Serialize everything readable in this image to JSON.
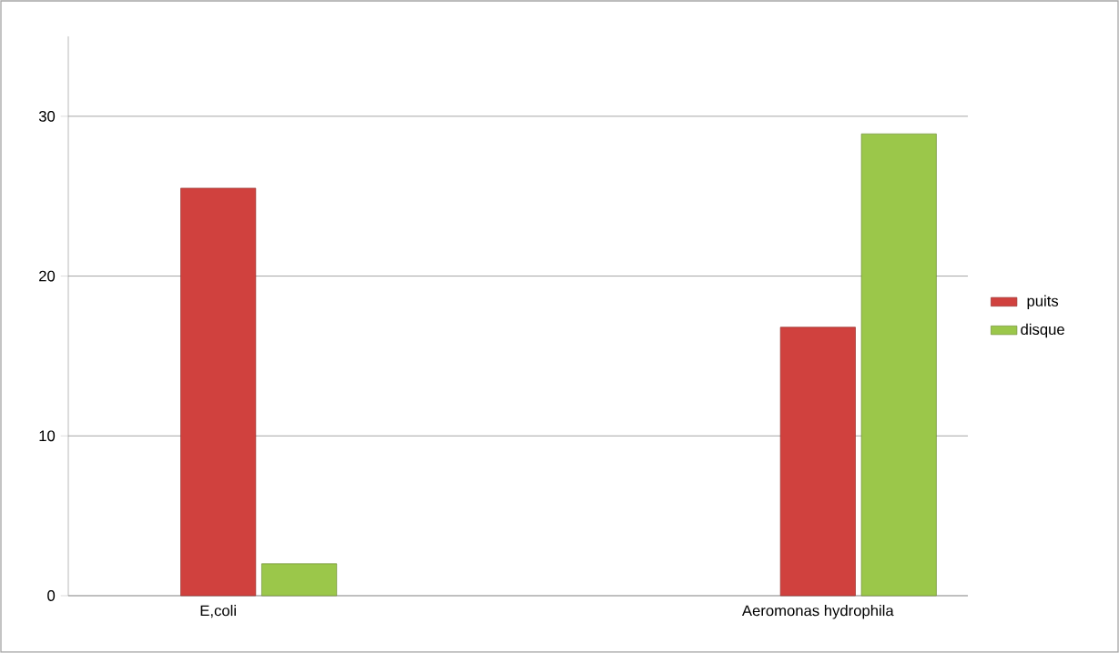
{
  "chart_data": {
    "type": "bar",
    "categories": [
      "E,coli",
      null,
      "Aeromonas hydrophila"
    ],
    "series": [
      {
        "name": "puits",
        "color": "#d0413e",
        "values": [
          25.5,
          null,
          16.8
        ]
      },
      {
        "name": "disque",
        "color": "#9bc74a",
        "values": [
          2,
          null,
          28.9
        ]
      }
    ],
    "ylim": [
      0,
      35
    ],
    "yticks": [
      0,
      10,
      20,
      30
    ],
    "grid": "y",
    "legend": "right"
  }
}
